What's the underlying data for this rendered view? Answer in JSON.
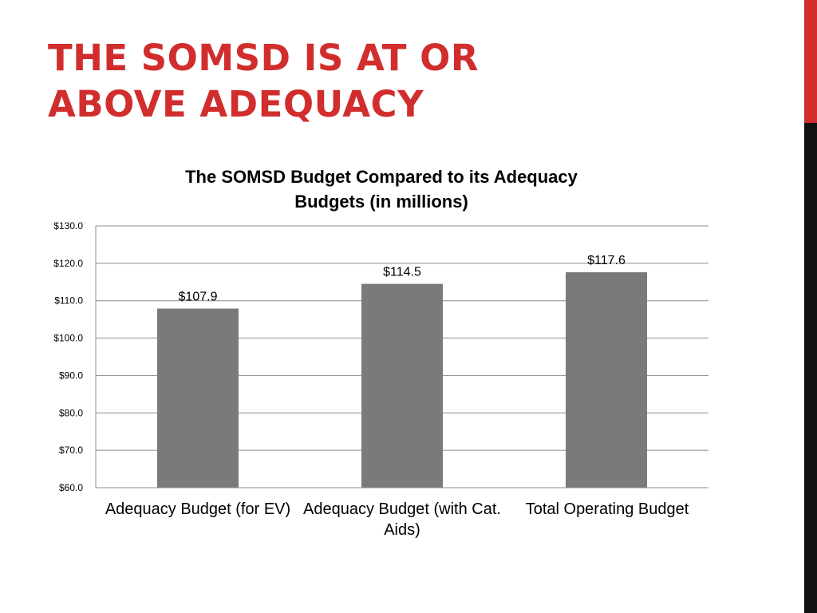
{
  "slide": {
    "title_lines": [
      "THE SOMSD IS AT OR",
      "ABOVE ADEQUACY"
    ],
    "colors": {
      "title": "#d12d2d",
      "accent_bar": "#d12d2d",
      "side_bar": "#111111"
    }
  },
  "chart_data": {
    "type": "bar",
    "title_lines": [
      "The SOMSD Budget Compared to its Adequacy",
      "Budgets (in millions)"
    ],
    "categories": [
      "Adequacy Budget (for EV)",
      "Adequacy Budget (with Cat. Aids)",
      "Total Operating Budget"
    ],
    "values": [
      107.9,
      114.5,
      117.6
    ],
    "data_labels": [
      "$107.9",
      "$114.5",
      "$117.6"
    ],
    "ylim": [
      60,
      130
    ],
    "yticks": [
      60,
      70,
      80,
      90,
      100,
      110,
      120,
      130
    ],
    "ytick_labels": [
      "$60.0",
      "$70.0",
      "$80.0",
      "$90.0",
      "$100.0",
      "$110.0",
      "$120.0",
      "$130.0"
    ],
    "xlabel": "",
    "ylabel": "",
    "grid": true,
    "bar_color": "#7a7a7a",
    "grid_color": "#8c8c8c"
  }
}
